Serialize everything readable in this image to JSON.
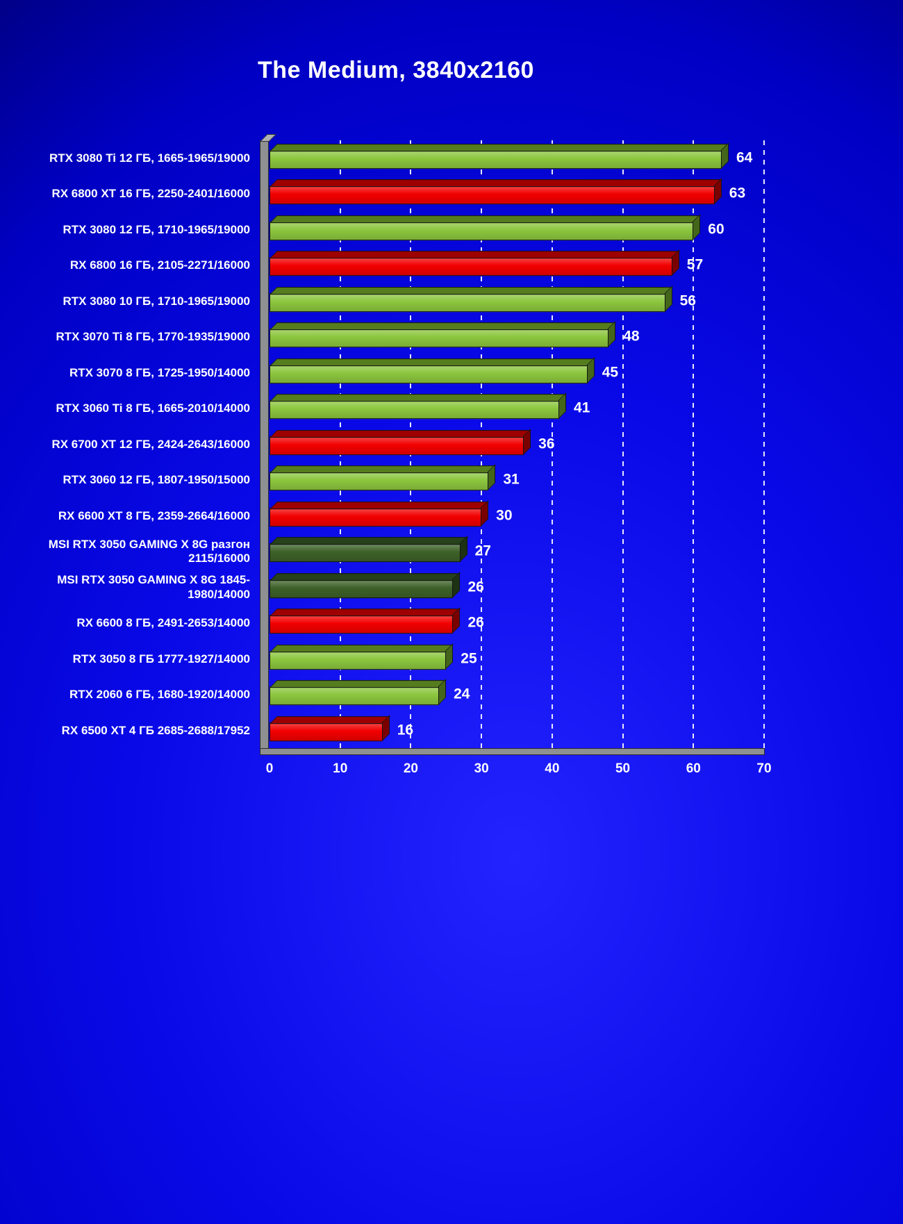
{
  "chart_data": {
    "type": "bar",
    "orientation": "horizontal",
    "title": "The Medium, 3840x2160",
    "categories": [
      "RTX 3080 Ti 12 ГБ, 1665-1965/19000",
      "RX 6800 XT 16 ГБ, 2250-2401/16000",
      "RTX 3080 12 ГБ, 1710-1965/19000",
      "RX 6800 16 ГБ, 2105-2271/16000",
      "RTX 3080 10 ГБ, 1710-1965/19000",
      "RTX 3070 Ti 8 ГБ, 1770-1935/19000",
      "RTX 3070 8 ГБ, 1725-1950/14000",
      "RTX 3060 Ti 8 ГБ, 1665-2010/14000",
      "RX 6700 XT 12 ГБ, 2424-2643/16000",
      "RTX 3060 12 ГБ, 1807-1950/15000",
      "RX 6600 XT 8 ГБ, 2359-2664/16000",
      "MSI  RTX 3050 GAMING  X 8G разгон 2115/16000",
      "MSI  RTX 3050 GAMING X 8G 1845-1980/14000",
      "RX 6600 8 ГБ, 2491-2653/14000",
      "RTX 3050 8 ГБ 1777-1927/14000",
      "RTX 2060 6 ГБ, 1680-1920/14000",
      "RX 6500 XT 4 ГБ 2685-2688/17952"
    ],
    "values": [
      64,
      63,
      60,
      57,
      56,
      48,
      45,
      41,
      36,
      31,
      30,
      27,
      26,
      26,
      25,
      24,
      16
    ],
    "bar_colors": [
      "green",
      "red",
      "green",
      "red",
      "green",
      "green",
      "green",
      "green",
      "red",
      "green",
      "red",
      "dark_green",
      "dark_green",
      "red",
      "green",
      "green",
      "red"
    ],
    "palette": {
      "green": {
        "face": "#8CC63E",
        "top": "#557D1E",
        "side": "#44661A"
      },
      "red": {
        "face": "#F20000",
        "top": "#9E0000",
        "side": "#7A0000"
      },
      "dark_green": {
        "face": "#3D6128",
        "top": "#27411A",
        "side": "#1D3213"
      }
    },
    "xlim": [
      0,
      70
    ],
    "x_ticks": [
      0,
      10,
      20,
      30,
      40,
      50,
      60,
      70
    ],
    "grid": "dashed white vertical gridlines every 10",
    "legend": "none",
    "background": {
      "style": "blue radial gradient",
      "bright": "#2323FF",
      "dark": "#000018"
    }
  }
}
